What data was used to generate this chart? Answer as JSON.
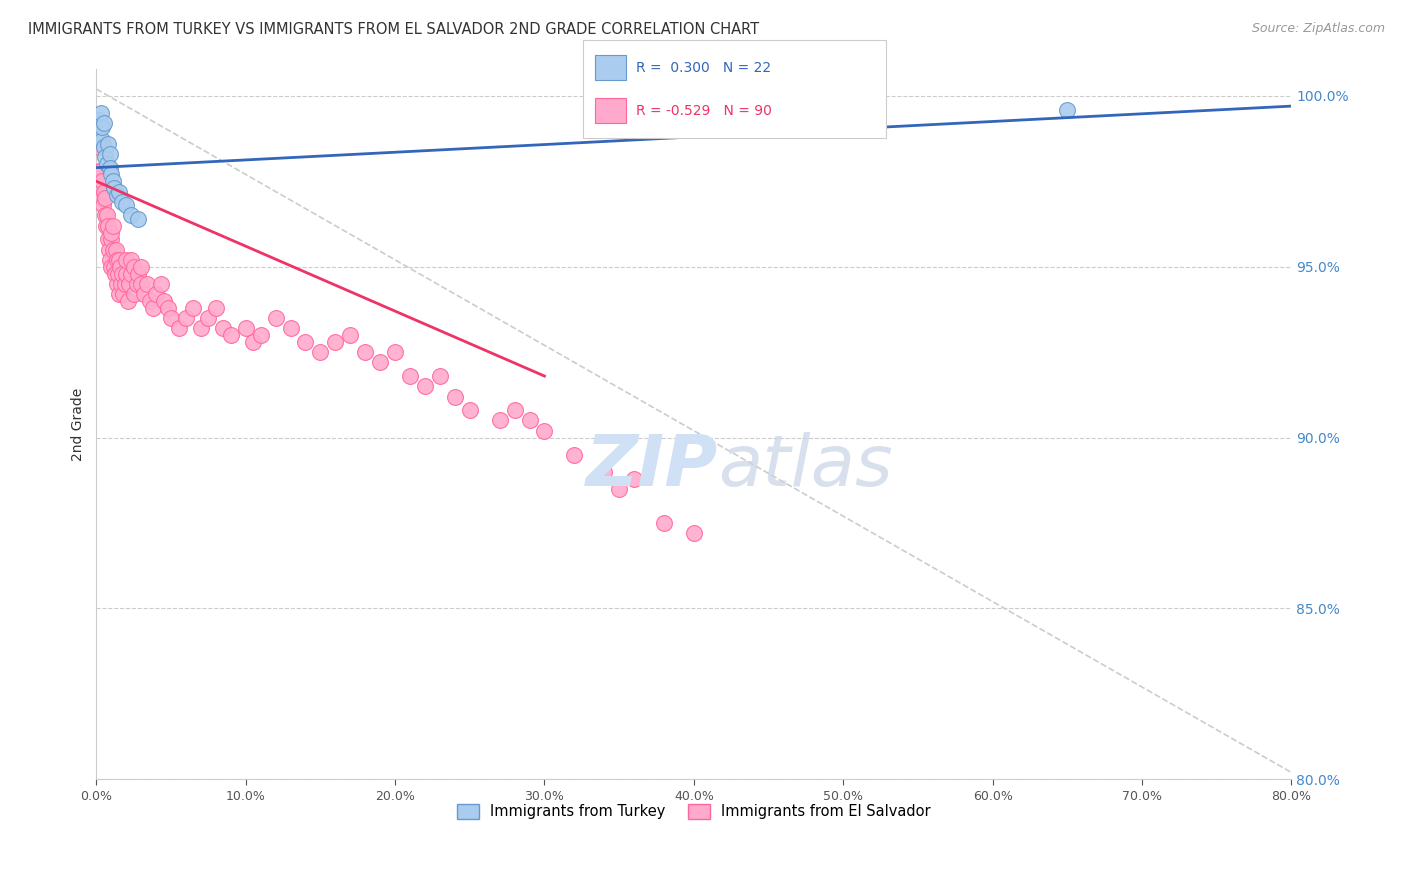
{
  "title": "IMMIGRANTS FROM TURKEY VS IMMIGRANTS FROM EL SALVADOR 2ND GRADE CORRELATION CHART",
  "source": "Source: ZipAtlas.com",
  "ylabel": "2nd Grade",
  "xlim": [
    0.0,
    80.0
  ],
  "ylim": [
    80.0,
    100.8
  ],
  "yticks": [
    80.0,
    85.0,
    90.0,
    95.0,
    100.0
  ],
  "xticks": [
    0.0,
    10.0,
    20.0,
    30.0,
    40.0,
    50.0,
    60.0,
    70.0,
    80.0
  ],
  "turkey_color": "#aaccee",
  "salvador_color": "#ffaacc",
  "turkey_edge": "#6699cc",
  "salvador_edge": "#ff6699",
  "trend_turkey_color": "#3366bb",
  "trend_salvador_color": "#ee3366",
  "watermark_color": "#d0e0f5",
  "background_color": "#ffffff",
  "grid_color": "#dddddd",
  "turkey_x": [
    0.15,
    0.2,
    0.3,
    0.4,
    0.4,
    0.5,
    0.5,
    0.6,
    0.7,
    0.8,
    0.9,
    0.9,
    1.0,
    1.1,
    1.2,
    1.4,
    1.5,
    1.7,
    2.0,
    2.3,
    2.8,
    65.0
  ],
  "turkey_y": [
    98.8,
    99.3,
    99.5,
    98.7,
    99.1,
    98.5,
    99.2,
    98.2,
    98.0,
    98.6,
    98.3,
    97.9,
    97.7,
    97.5,
    97.3,
    97.1,
    97.2,
    96.9,
    96.8,
    96.5,
    96.4,
    99.6
  ],
  "salvador_x": [
    0.15,
    0.2,
    0.25,
    0.3,
    0.35,
    0.4,
    0.45,
    0.5,
    0.55,
    0.6,
    0.65,
    0.7,
    0.75,
    0.8,
    0.85,
    0.9,
    0.95,
    1.0,
    1.0,
    1.1,
    1.1,
    1.2,
    1.25,
    1.3,
    1.35,
    1.4,
    1.45,
    1.5,
    1.5,
    1.6,
    1.65,
    1.7,
    1.8,
    1.9,
    2.0,
    2.0,
    2.1,
    2.2,
    2.3,
    2.3,
    2.5,
    2.5,
    2.7,
    2.8,
    3.0,
    3.0,
    3.2,
    3.4,
    3.6,
    3.8,
    4.0,
    4.3,
    4.5,
    4.8,
    5.0,
    5.5,
    6.0,
    6.5,
    7.0,
    7.5,
    8.0,
    8.5,
    9.0,
    10.0,
    10.5,
    11.0,
    12.0,
    13.0,
    14.0,
    15.0,
    16.0,
    17.0,
    18.0,
    19.0,
    20.0,
    21.0,
    22.0,
    23.0,
    24.0,
    25.0,
    27.0,
    28.0,
    29.0,
    30.0,
    32.0,
    34.0,
    35.0,
    36.0,
    38.0,
    40.0
  ],
  "salvador_y": [
    97.8,
    98.5,
    97.2,
    97.8,
    97.0,
    97.5,
    96.8,
    97.2,
    96.5,
    97.0,
    96.2,
    96.5,
    95.8,
    96.2,
    95.5,
    95.2,
    95.8,
    95.0,
    96.0,
    95.5,
    96.2,
    95.0,
    94.8,
    95.5,
    95.2,
    94.5,
    94.8,
    95.2,
    94.2,
    95.0,
    94.5,
    94.8,
    94.2,
    94.5,
    94.8,
    95.2,
    94.0,
    94.5,
    94.8,
    95.2,
    95.0,
    94.2,
    94.5,
    94.8,
    95.0,
    94.5,
    94.2,
    94.5,
    94.0,
    93.8,
    94.2,
    94.5,
    94.0,
    93.8,
    93.5,
    93.2,
    93.5,
    93.8,
    93.2,
    93.5,
    93.8,
    93.2,
    93.0,
    93.2,
    92.8,
    93.0,
    93.5,
    93.2,
    92.8,
    92.5,
    92.8,
    93.0,
    92.5,
    92.2,
    92.5,
    91.8,
    91.5,
    91.8,
    91.2,
    90.8,
    90.5,
    90.8,
    90.5,
    90.2,
    89.5,
    89.0,
    88.5,
    88.8,
    87.5,
    87.2
  ]
}
